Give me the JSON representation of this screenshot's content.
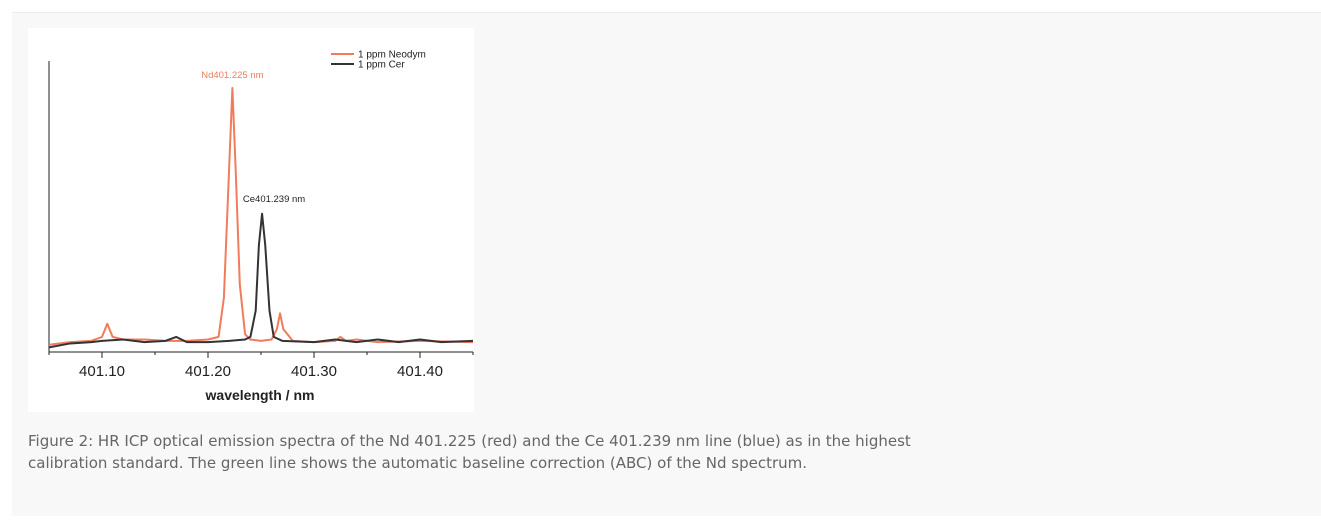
{
  "chart_data": {
    "type": "line",
    "xlabel": "wavelength / nm",
    "ylabel": "",
    "xlim": [
      401.05,
      401.45
    ],
    "ylim": [
      0,
      1.1
    ],
    "x_ticks": [
      "401.10",
      "401.20",
      "401.30",
      "401.40"
    ],
    "grid": false,
    "legend": "top-right",
    "series": [
      {
        "name": "1 ppm Neodym",
        "color": "#f07c5c",
        "points": [
          [
            401.05,
            0.02
          ],
          [
            401.07,
            0.03
          ],
          [
            401.09,
            0.035
          ],
          [
            401.1,
            0.05
          ],
          [
            401.105,
            0.1
          ],
          [
            401.11,
            0.05
          ],
          [
            401.12,
            0.04
          ],
          [
            401.14,
            0.04
          ],
          [
            401.16,
            0.035
          ],
          [
            401.18,
            0.035
          ],
          [
            401.2,
            0.04
          ],
          [
            401.21,
            0.05
          ],
          [
            401.215,
            0.2
          ],
          [
            401.22,
            0.7
          ],
          [
            401.223,
            1.0
          ],
          [
            401.226,
            0.7
          ],
          [
            401.23,
            0.25
          ],
          [
            401.235,
            0.06
          ],
          [
            401.24,
            0.04
          ],
          [
            401.25,
            0.035
          ],
          [
            401.26,
            0.04
          ],
          [
            401.265,
            0.08
          ],
          [
            401.268,
            0.14
          ],
          [
            401.271,
            0.08
          ],
          [
            401.28,
            0.035
          ],
          [
            401.3,
            0.03
          ],
          [
            401.32,
            0.035
          ],
          [
            401.325,
            0.05
          ],
          [
            401.33,
            0.035
          ],
          [
            401.34,
            0.04
          ],
          [
            401.36,
            0.03
          ],
          [
            401.4,
            0.035
          ],
          [
            401.45,
            0.03
          ]
        ]
      },
      {
        "name": "1 ppm Cer",
        "color": "#333333",
        "points": [
          [
            401.05,
            0.01
          ],
          [
            401.07,
            0.025
          ],
          [
            401.09,
            0.03
          ],
          [
            401.1,
            0.035
          ],
          [
            401.12,
            0.04
          ],
          [
            401.14,
            0.03
          ],
          [
            401.16,
            0.035
          ],
          [
            401.17,
            0.05
          ],
          [
            401.18,
            0.03
          ],
          [
            401.2,
            0.03
          ],
          [
            401.22,
            0.035
          ],
          [
            401.235,
            0.04
          ],
          [
            401.24,
            0.05
          ],
          [
            401.245,
            0.15
          ],
          [
            401.248,
            0.4
          ],
          [
            401.251,
            0.52
          ],
          [
            401.254,
            0.4
          ],
          [
            401.258,
            0.15
          ],
          [
            401.262,
            0.05
          ],
          [
            401.27,
            0.035
          ],
          [
            401.3,
            0.03
          ],
          [
            401.32,
            0.04
          ],
          [
            401.34,
            0.03
          ],
          [
            401.36,
            0.04
          ],
          [
            401.38,
            0.03
          ],
          [
            401.4,
            0.04
          ],
          [
            401.42,
            0.03
          ],
          [
            401.45,
            0.035
          ]
        ]
      }
    ],
    "annotations": [
      {
        "text": "Nd401.225 nm",
        "x": 401.223,
        "y": 1.0,
        "color": "#f07c5c"
      },
      {
        "text": "Ce401.239 nm",
        "x": 401.251,
        "y": 0.52,
        "color": "#222222"
      }
    ]
  },
  "caption": {
    "line1": "Figure 2: HR ICP optical emission spectra of the Nd 401.225 (red) and the Ce 401.239 nm line (blue) as in the highest",
    "line2": "calibration standard. The green line shows the automatic baseline correction (ABC) of the Nd spectrum."
  }
}
